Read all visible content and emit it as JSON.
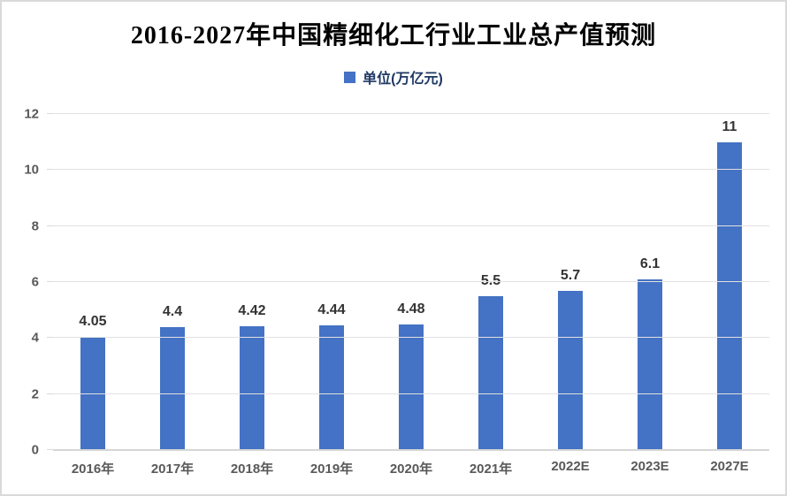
{
  "title": "2016-2027年中国精细化工行业工业总产值预测",
  "legend": {
    "label": "单位(万亿元)",
    "swatch_color": "#4472C4"
  },
  "colors": {
    "bar": "#4472C4",
    "gridline": "#e2e2e2",
    "baseline": "#d6d6d6",
    "axis_label": "#595959",
    "data_label": "#333333",
    "legend_text": "#1F3864",
    "title_text": "#000000"
  },
  "chart_data": {
    "type": "bar",
    "title": "2016-2027年中国精细化工行业工业总产值预测",
    "legend_entries": [
      "单位(万亿元)"
    ],
    "legend_position": "top",
    "categories": [
      "2016年",
      "2017年",
      "2018年",
      "2019年",
      "2020年",
      "2021年",
      "2022E",
      "2023E",
      "2027E"
    ],
    "values": [
      4.05,
      4.4,
      4.42,
      4.44,
      4.48,
      5.5,
      5.7,
      6.1,
      11
    ],
    "data_labels": [
      "4.05",
      "4.4",
      "4.42",
      "4.44",
      "4.48",
      "5.5",
      "5.7",
      "6.1",
      "11"
    ],
    "xlabel": "",
    "ylabel": "",
    "ylim": [
      0,
      12
    ],
    "yticks": [
      0,
      2,
      4,
      6,
      8,
      10,
      12
    ],
    "grid": true
  }
}
